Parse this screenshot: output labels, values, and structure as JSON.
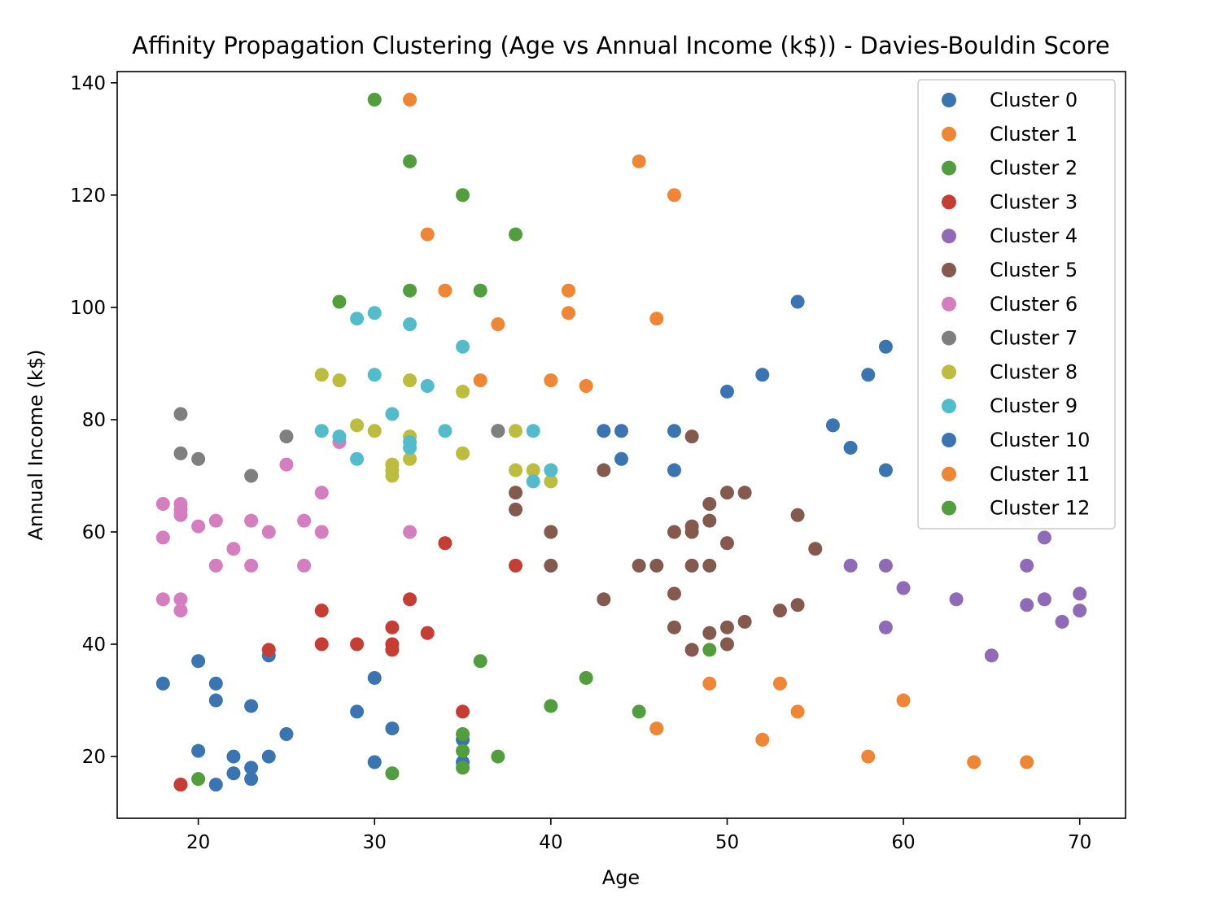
{
  "chart_data": {
    "type": "scatter",
    "title": "Affinity Propagation Clustering (Age vs Annual Income (k$)) - Davies-Bouldin Score",
    "xlabel": "Age",
    "ylabel": "Annual Income (k$)",
    "xlim": [
      15.4,
      72.6
    ],
    "ylim": [
      9.0,
      142.0
    ],
    "xticks": [
      20,
      30,
      40,
      50,
      60,
      70
    ],
    "yticks": [
      20,
      40,
      60,
      80,
      100,
      120,
      140
    ],
    "grid": false,
    "legend_position": "top-right",
    "series": [
      {
        "name": "Cluster 0",
        "color": "#3a74b1",
        "points": [
          [
            18,
            33
          ],
          [
            19,
            15
          ],
          [
            20,
            21
          ],
          [
            20,
            37
          ],
          [
            21,
            30
          ],
          [
            21,
            33
          ],
          [
            21,
            15
          ],
          [
            22,
            17
          ],
          [
            22,
            20
          ],
          [
            23,
            16
          ],
          [
            23,
            18
          ],
          [
            23,
            29
          ],
          [
            24,
            20
          ],
          [
            24,
            38
          ],
          [
            25,
            24
          ],
          [
            29,
            28
          ],
          [
            30,
            19
          ],
          [
            30,
            34
          ],
          [
            31,
            25
          ],
          [
            35,
            19
          ],
          [
            35,
            23
          ]
        ]
      },
      {
        "name": "Cluster 1",
        "color": "#ee8636",
        "points": [
          [
            32,
            137
          ],
          [
            33,
            113
          ],
          [
            34,
            103
          ],
          [
            36,
            87
          ],
          [
            37,
            97
          ],
          [
            40,
            87
          ],
          [
            41,
            99
          ],
          [
            41,
            103
          ],
          [
            42,
            86
          ],
          [
            45,
            126
          ],
          [
            46,
            98
          ],
          [
            47,
            120
          ]
        ]
      },
      {
        "name": "Cluster 2",
        "color": "#529d3e",
        "points": [
          [
            28,
            101
          ],
          [
            30,
            137
          ],
          [
            32,
            103
          ],
          [
            32,
            126
          ],
          [
            35,
            120
          ],
          [
            36,
            103
          ],
          [
            38,
            113
          ]
        ]
      },
      {
        "name": "Cluster 3",
        "color": "#c63d33",
        "points": [
          [
            19,
            15
          ],
          [
            24,
            39
          ],
          [
            27,
            40
          ],
          [
            27,
            46
          ],
          [
            29,
            40
          ],
          [
            31,
            39
          ],
          [
            31,
            40
          ],
          [
            31,
            43
          ],
          [
            32,
            48
          ],
          [
            33,
            42
          ],
          [
            34,
            58
          ],
          [
            35,
            28
          ],
          [
            38,
            54
          ]
        ]
      },
      {
        "name": "Cluster 4",
        "color": "#8f6bb7",
        "points": [
          [
            57,
            54
          ],
          [
            59,
            43
          ],
          [
            59,
            54
          ],
          [
            60,
            50
          ],
          [
            63,
            48
          ],
          [
            65,
            38
          ],
          [
            67,
            47
          ],
          [
            67,
            54
          ],
          [
            68,
            48
          ],
          [
            68,
            59
          ],
          [
            69,
            44
          ],
          [
            70,
            46
          ],
          [
            70,
            49
          ]
        ]
      },
      {
        "name": "Cluster 5",
        "color": "#84594e",
        "points": [
          [
            37,
            78
          ],
          [
            38,
            64
          ],
          [
            38,
            67
          ],
          [
            40,
            54
          ],
          [
            40,
            60
          ],
          [
            43,
            48
          ],
          [
            43,
            71
          ],
          [
            45,
            54
          ],
          [
            46,
            54
          ],
          [
            47,
            43
          ],
          [
            47,
            49
          ],
          [
            47,
            60
          ],
          [
            48,
            39
          ],
          [
            48,
            54
          ],
          [
            48,
            60
          ],
          [
            48,
            61
          ],
          [
            48,
            77
          ],
          [
            49,
            42
          ],
          [
            49,
            54
          ],
          [
            49,
            62
          ],
          [
            49,
            65
          ],
          [
            50,
            40
          ],
          [
            50,
            43
          ],
          [
            50,
            58
          ],
          [
            50,
            67
          ],
          [
            51,
            44
          ],
          [
            51,
            67
          ],
          [
            53,
            46
          ],
          [
            54,
            47
          ],
          [
            54,
            63
          ],
          [
            55,
            57
          ]
        ]
      },
      {
        "name": "Cluster 6",
        "color": "#d47ec0",
        "points": [
          [
            18,
            48
          ],
          [
            18,
            59
          ],
          [
            18,
            65
          ],
          [
            19,
            46
          ],
          [
            19,
            48
          ],
          [
            19,
            63
          ],
          [
            19,
            64
          ],
          [
            19,
            65
          ],
          [
            20,
            61
          ],
          [
            21,
            54
          ],
          [
            21,
            62
          ],
          [
            22,
            57
          ],
          [
            23,
            54
          ],
          [
            23,
            62
          ],
          [
            24,
            60
          ],
          [
            25,
            72
          ],
          [
            26,
            54
          ],
          [
            26,
            62
          ],
          [
            27,
            60
          ],
          [
            27,
            67
          ],
          [
            28,
            76
          ],
          [
            32,
            60
          ]
        ]
      },
      {
        "name": "Cluster 7",
        "color": "#7f7f7f",
        "points": [
          [
            19,
            74
          ],
          [
            19,
            81
          ],
          [
            20,
            73
          ],
          [
            23,
            70
          ],
          [
            25,
            77
          ],
          [
            37,
            78
          ]
        ]
      },
      {
        "name": "Cluster 8",
        "color": "#bcbc3f",
        "points": [
          [
            27,
            88
          ],
          [
            28,
            87
          ],
          [
            29,
            79
          ],
          [
            30,
            78
          ],
          [
            31,
            70
          ],
          [
            31,
            71
          ],
          [
            31,
            72
          ],
          [
            32,
            73
          ],
          [
            32,
            77
          ],
          [
            32,
            87
          ],
          [
            35,
            74
          ],
          [
            35,
            85
          ],
          [
            38,
            71
          ],
          [
            38,
            78
          ],
          [
            39,
            71
          ],
          [
            40,
            69
          ]
        ]
      },
      {
        "name": "Cluster 9",
        "color": "#52bccb",
        "points": [
          [
            27,
            78
          ],
          [
            28,
            77
          ],
          [
            29,
            73
          ],
          [
            29,
            98
          ],
          [
            30,
            88
          ],
          [
            30,
            99
          ],
          [
            31,
            81
          ],
          [
            32,
            75
          ],
          [
            32,
            76
          ],
          [
            32,
            97
          ],
          [
            33,
            86
          ],
          [
            34,
            78
          ],
          [
            35,
            93
          ],
          [
            39,
            69
          ],
          [
            39,
            78
          ],
          [
            40,
            71
          ]
        ]
      },
      {
        "name": "Cluster 10",
        "color": "#3a74b1",
        "points": [
          [
            43,
            78
          ],
          [
            44,
            73
          ],
          [
            44,
            78
          ],
          [
            47,
            71
          ],
          [
            47,
            78
          ],
          [
            50,
            85
          ],
          [
            52,
            88
          ],
          [
            54,
            101
          ],
          [
            56,
            79
          ],
          [
            57,
            75
          ],
          [
            58,
            88
          ],
          [
            59,
            71
          ],
          [
            59,
            93
          ]
        ]
      },
      {
        "name": "Cluster 11",
        "color": "#ee8636",
        "points": [
          [
            46,
            25
          ],
          [
            49,
            33
          ],
          [
            52,
            23
          ],
          [
            53,
            33
          ],
          [
            54,
            28
          ],
          [
            58,
            20
          ],
          [
            60,
            30
          ],
          [
            64,
            19
          ],
          [
            67,
            19
          ]
        ]
      },
      {
        "name": "Cluster 12",
        "color": "#529d3e",
        "points": [
          [
            20,
            16
          ],
          [
            31,
            17
          ],
          [
            35,
            18
          ],
          [
            35,
            21
          ],
          [
            35,
            24
          ],
          [
            36,
            37
          ],
          [
            37,
            20
          ],
          [
            40,
            29
          ],
          [
            42,
            34
          ],
          [
            45,
            28
          ],
          [
            49,
            39
          ]
        ]
      }
    ],
    "background_points": {
      "color": "#ece8f2",
      "points": [
        [
          63,
          65
        ],
        [
          65,
          63
        ],
        [
          66,
          63
        ],
        [
          67,
          62
        ],
        [
          68,
          63
        ]
      ]
    }
  }
}
